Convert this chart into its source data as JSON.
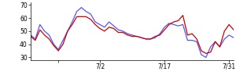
{
  "xlim": [
    0,
    44
  ],
  "ylim": [
    28,
    72
  ],
  "yticks": [
    30,
    40,
    50,
    60,
    70
  ],
  "xtick_positions": [
    6,
    15,
    29,
    43
  ],
  "xtick_labels": [
    "",
    "7/2",
    "7/17",
    "7/31"
  ],
  "blue_line": [
    47,
    44,
    55,
    50,
    47,
    40,
    36,
    43,
    50,
    57,
    65,
    68,
    65,
    63,
    57,
    55,
    53,
    57,
    54,
    51,
    50,
    48,
    47,
    46,
    45,
    44,
    44,
    45,
    48,
    53,
    56,
    55,
    54,
    55,
    43,
    43,
    42,
    32,
    30,
    38,
    42,
    38,
    44,
    47,
    45
  ],
  "red_line": [
    46,
    43,
    51,
    47,
    44,
    39,
    35,
    40,
    50,
    55,
    61,
    61,
    61,
    59,
    55,
    52,
    50,
    53,
    52,
    49,
    49,
    47,
    46,
    46,
    45,
    44,
    44,
    46,
    47,
    51,
    55,
    57,
    58,
    62,
    47,
    48,
    44,
    35,
    33,
    34,
    42,
    38,
    50,
    55,
    51
  ],
  "blue_color": "#5555ff",
  "red_color": "#cc0000",
  "bg_color": "#ffffff",
  "line_width": 0.9
}
